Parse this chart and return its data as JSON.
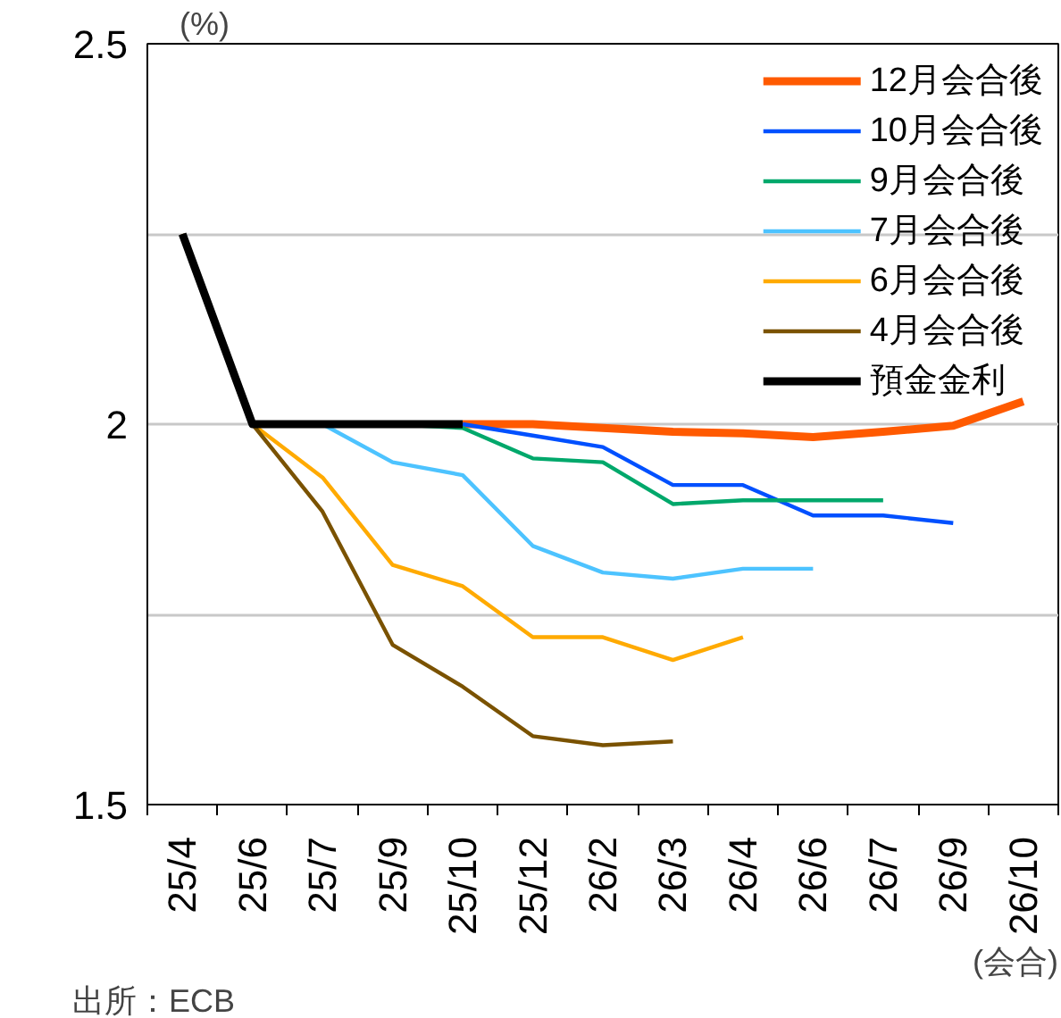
{
  "chart_data": {
    "type": "line",
    "ylabel": "(%)",
    "xlabel": "(会合)",
    "annotations": [
      "出所：ECB"
    ],
    "categories": [
      "25/4",
      "25/6",
      "25/7",
      "25/9",
      "25/10",
      "25/12",
      "26/2",
      "26/3",
      "26/4",
      "26/6",
      "26/7",
      "26/9",
      "26/10"
    ],
    "ylim": [
      1.5,
      2.5
    ],
    "yticks": [
      1.5,
      {
        "value": 1.75,
        "label": null
      },
      2,
      {
        "value": 2.25,
        "label": null
      },
      2.5
    ],
    "grid": "y",
    "legend": "top right",
    "marker": "none",
    "line_style": "solid",
    "series": [
      {
        "name": "12月会合後",
        "color": "#ff5a00",
        "values": [
          null,
          null,
          null,
          null,
          2.0,
          2.0,
          1.995,
          1.99,
          1.988,
          1.983,
          1.99,
          1.998,
          2.03
        ]
      },
      {
        "name": "10月会合後",
        "color": "#0050ff",
        "values": [
          null,
          null,
          null,
          null,
          2.0,
          1.985,
          1.97,
          1.92,
          1.92,
          1.88,
          1.88,
          1.87,
          null
        ]
      },
      {
        "name": "9月会合後",
        "color": "#00a86b",
        "values": [
          null,
          null,
          null,
          2.0,
          1.995,
          1.955,
          1.95,
          1.895,
          1.9,
          1.9,
          1.9,
          null,
          null
        ]
      },
      {
        "name": "7月会合後",
        "color": "#4dc3ff",
        "values": [
          null,
          null,
          2.0,
          1.95,
          1.933,
          1.84,
          1.805,
          1.797,
          1.81,
          1.81,
          null,
          null,
          null
        ]
      },
      {
        "name": "6月会合後",
        "color": "#ffaa00",
        "values": [
          null,
          2.0,
          1.93,
          1.815,
          1.787,
          1.72,
          1.72,
          1.69,
          1.72,
          null,
          null,
          null,
          null
        ]
      },
      {
        "name": "4月会合後",
        "color": "#7a5200",
        "values": [
          2.25,
          2.0,
          1.885,
          1.71,
          1.655,
          1.59,
          1.578,
          1.583,
          null,
          null,
          null,
          null,
          null
        ]
      },
      {
        "name": "預金金利",
        "color": "#000000",
        "values": [
          2.25,
          2.0,
          2.0,
          2.0,
          2.0,
          null,
          null,
          null,
          null,
          null,
          null,
          null,
          null
        ]
      }
    ]
  }
}
